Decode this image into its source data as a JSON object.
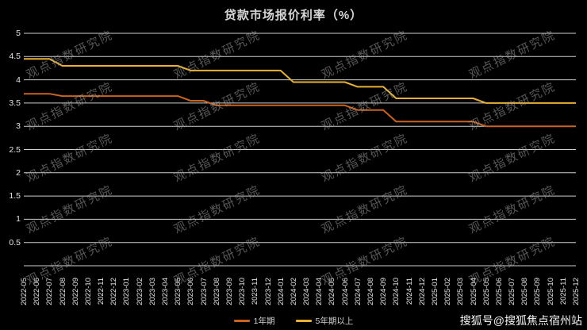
{
  "watermark": {
    "text": "观点指数研究院",
    "color": "#aaaaaa"
  },
  "sohu_badge": "搜狐号@搜狐焦点宿州站",
  "chart_data": {
    "type": "line",
    "title": "贷款市场报价利率（%）",
    "background": "#000000",
    "grid": true,
    "grid_color": "#cfcfcf",
    "legend_position": "bottom",
    "ylim": [
      0,
      5
    ],
    "y_ticks": [
      "5",
      "4.5",
      "4",
      "3.5",
      "3",
      "2.5",
      "2",
      "1.5",
      "1",
      "0.5"
    ],
    "categories": [
      "2022-05",
      "2022-06",
      "2022-07",
      "2022-08",
      "2022-09",
      "2022-10",
      "2022-11",
      "2022-12",
      "2023-01",
      "2023-02",
      "2023-03",
      "2023-04",
      "2023-05",
      "2023-06",
      "2023-07",
      "2023-08",
      "2023-09",
      "2023-10",
      "2023-11",
      "2023-12",
      "2024-01",
      "2024-02",
      "2024-03",
      "2024-04",
      "2024-05",
      "2024-06",
      "2024-07",
      "2024-08",
      "2024-09",
      "2024-10",
      "2024-11",
      "2024-12",
      "2025-01",
      "2025-02",
      "2025-03",
      "2025-04",
      "2025-05",
      "2025-06",
      "2025-07",
      "2025-08",
      "2025-09",
      "2025-10",
      "2025-11",
      "2025-12"
    ],
    "series": [
      {
        "name": "1年期",
        "color": "#c9631f",
        "values": [
          3.7,
          3.7,
          3.7,
          3.65,
          3.65,
          3.65,
          3.65,
          3.65,
          3.65,
          3.65,
          3.65,
          3.65,
          3.65,
          3.55,
          3.55,
          3.45,
          3.45,
          3.45,
          3.45,
          3.45,
          3.45,
          3.45,
          3.45,
          3.45,
          3.45,
          3.45,
          3.35,
          3.35,
          3.35,
          3.1,
          3.1,
          3.1,
          3.1,
          3.1,
          3.1,
          3.1,
          3.0,
          3.0,
          3.0,
          3.0,
          3.0,
          3.0,
          3.0,
          3.0
        ]
      },
      {
        "name": "5年期以上",
        "color": "#e8b132",
        "values": [
          4.45,
          4.45,
          4.45,
          4.3,
          4.3,
          4.3,
          4.3,
          4.3,
          4.3,
          4.3,
          4.3,
          4.3,
          4.3,
          4.2,
          4.2,
          4.2,
          4.2,
          4.2,
          4.2,
          4.2,
          4.2,
          3.95,
          3.95,
          3.95,
          3.95,
          3.95,
          3.85,
          3.85,
          3.85,
          3.6,
          3.6,
          3.6,
          3.6,
          3.6,
          3.6,
          3.6,
          3.5,
          3.5,
          3.5,
          3.5,
          3.5,
          3.5,
          3.5,
          3.5
        ]
      }
    ]
  }
}
